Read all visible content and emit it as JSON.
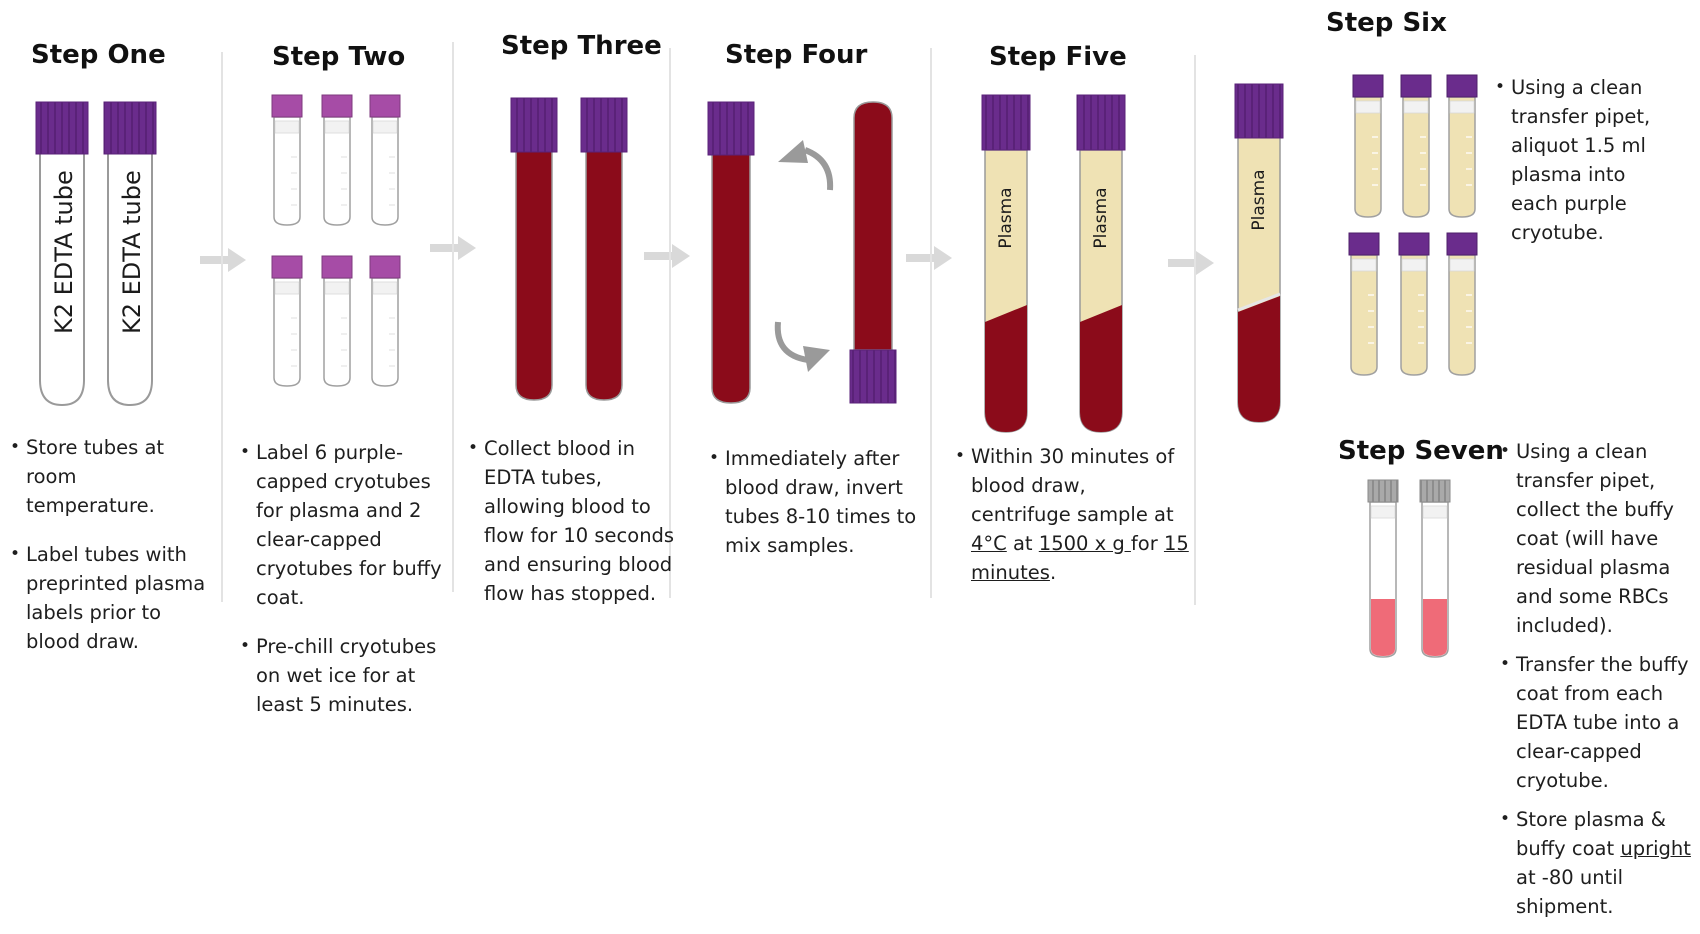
{
  "steps": {
    "one": {
      "title": "Step One",
      "tube_label": "K2 EDTA tube"
    },
    "two": {
      "title": "Step Two"
    },
    "three": {
      "title": "Step Three"
    },
    "four": {
      "title": "Step Four"
    },
    "five": {
      "title": "Step Five",
      "tube_label": "Plasma"
    },
    "six": {
      "title": "Step Six",
      "tube_label": "Plasma"
    },
    "seven": {
      "title": "Step Seven"
    }
  },
  "text": {
    "one_b1": "Store tubes at room temperature.",
    "one_b2": "Label tubes with preprinted plasma labels prior to blood draw.",
    "two_b1": "Label 6 purple-capped cryotubes for plasma and 2 clear-capped cryotubes for buffy coat.",
    "two_b2": "Pre-chill cryotubes on wet ice for at least 5 minutes.",
    "three_b1": "Collect blood in EDTA tubes, allowing blood to flow for 10 seconds and ensuring blood flow has stopped.",
    "four_b1": "Immediately after blood draw, invert tubes 8-10 times to mix samples.",
    "five_b1_a": "Within 30 minutes of blood draw, centrifuge sample at ",
    "five_b1_temp": "4°C",
    "five_b1_b": " at ",
    "five_b1_speed": "1500 x g ",
    "five_b1_c": "for ",
    "five_b1_time": "15 minutes",
    "five_b1_d": ".",
    "six_b1": "Using a clean transfer pipet, aliquot 1.5 ml plasma into each purple cryotube.",
    "seven_b1": "Using a clean transfer pipet, collect the buffy coat (will have residual plasma and some RBCs included).",
    "seven_b2": "Transfer the buffy coat from each EDTA tube into a clear-capped cryotube.",
    "seven_b3_a": "Store plasma & buffy coat ",
    "seven_b3_upright": "upright",
    "seven_b3_b": " at -80 until shipment."
  },
  "colors": {
    "purple_cap": "#6a2c8c",
    "magenta_cap": "#a64ca6",
    "blood": "#8b0b1a",
    "plasma": "#efe2b4",
    "buffy": "#ef6b78",
    "gray_cap": "#a9a9a9",
    "arrow": "#d9d9d9"
  },
  "icons": [
    "rotate-arrow-icon",
    "right-arrow-icon"
  ]
}
